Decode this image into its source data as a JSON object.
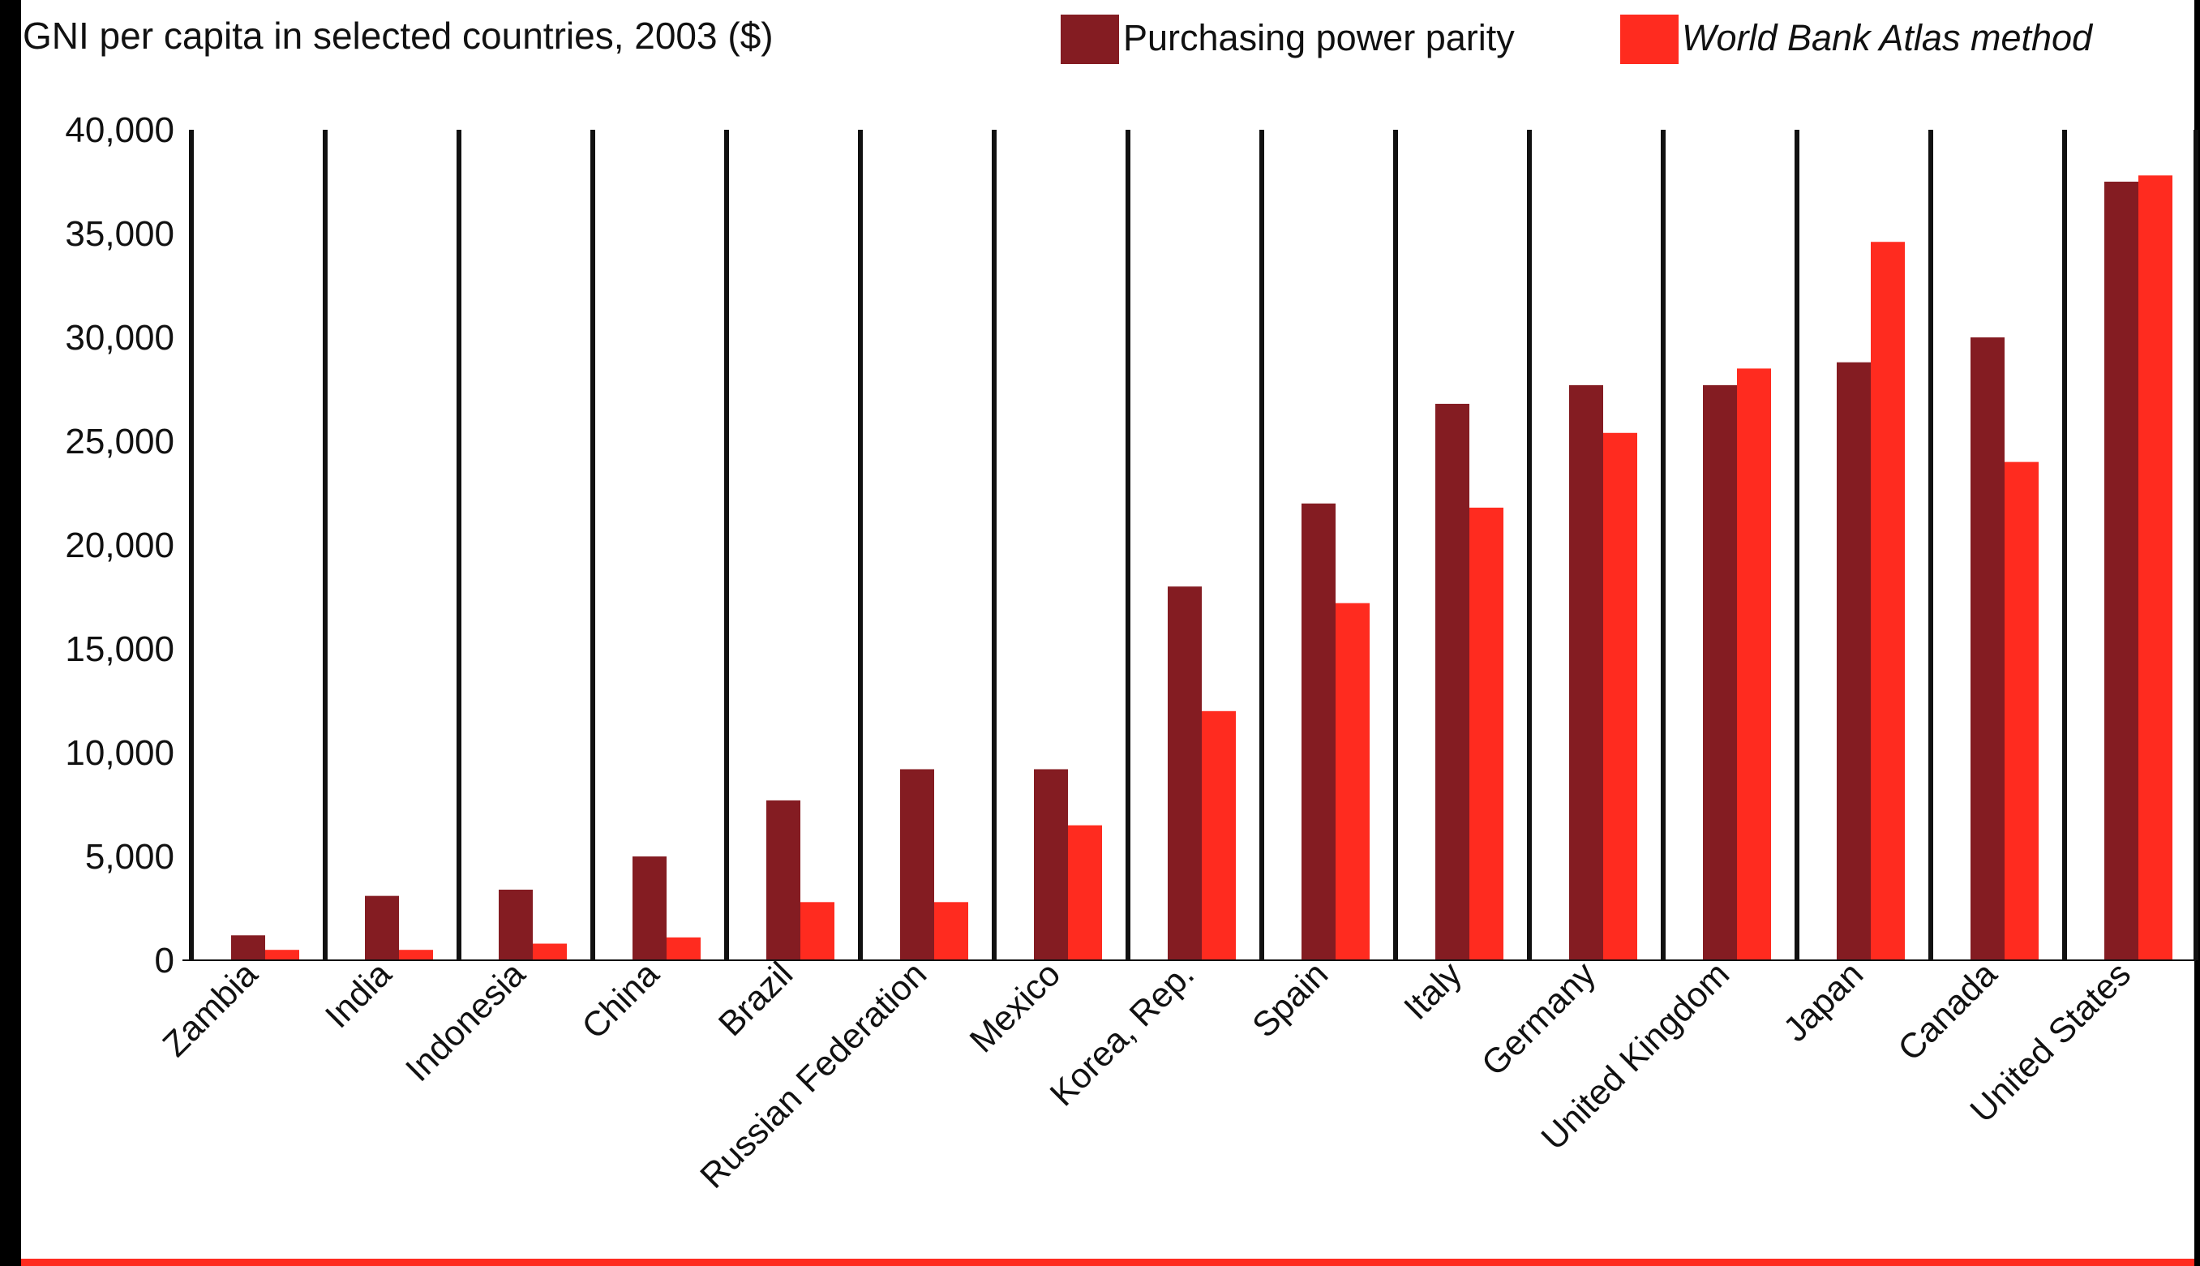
{
  "chart_data": {
    "type": "bar",
    "title": "GNI per capita in selected countries, 2003 ($)",
    "xlabel": "",
    "ylabel": "",
    "ylim": [
      0,
      40000
    ],
    "yticks": [
      0,
      5000,
      10000,
      15000,
      20000,
      25000,
      30000,
      35000,
      40000
    ],
    "ytick_labels": [
      "0",
      "5,000",
      "10,000",
      "15,000",
      "20,000",
      "25,000",
      "30,000",
      "35,000",
      "40,000"
    ],
    "grid": "vertical lines between categories",
    "legend": "top-right",
    "categories": [
      "Zambia",
      "India",
      "Indonesia",
      "China",
      "Brazil",
      "Russian Federation",
      "Mexico",
      "Korea, Rep.",
      "Spain",
      "Italy",
      "Germany",
      "United Kingdom",
      "Japan",
      "Canada",
      "United States"
    ],
    "series": [
      {
        "name": "Purchasing power parity",
        "color": "#841c22",
        "values": [
          1200,
          3100,
          3400,
          5000,
          7700,
          9200,
          9200,
          18000,
          22000,
          26800,
          27700,
          27700,
          28800,
          30000,
          37500
        ]
      },
      {
        "name": "World Bank Atlas method",
        "color": "#ff2b1f",
        "values": [
          500,
          500,
          800,
          1100,
          2800,
          2800,
          6500,
          12000,
          17200,
          21800,
          25400,
          28500,
          34600,
          24000,
          37800
        ]
      }
    ],
    "colors": {
      "panel": "#ffffff",
      "frame": "#000000",
      "divider": "#111111",
      "footer_rule": "#ff2b1f"
    }
  }
}
